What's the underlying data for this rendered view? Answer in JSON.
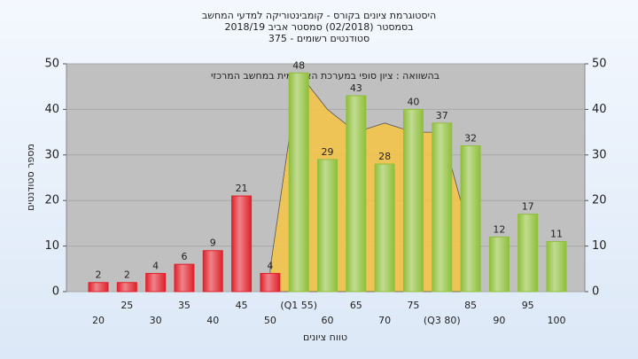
{
  "chart_data": {
    "type": "bar",
    "title": "היסטוגרמת ציונים בקורס - קומבינטוריקה למדעי המחשב",
    "subtitle": "בסמסטר  (02/2018)  סמסטר אביב 2018/19",
    "subtitle2": "סטודנטים רשומים - 375",
    "annotation": "בהשוואה : ציון סופי במערכת האקדמית במחשב המרכזי",
    "y_label": "מספר סטודנטים",
    "x_label": "טווח ציונים",
    "categories": [
      "20",
      "25",
      "30",
      "35",
      "40",
      "45",
      "50",
      "(Q1 55)",
      "60",
      "65",
      "70",
      "75",
      "(Q3 80)",
      "85",
      "90",
      "95",
      "100"
    ],
    "values": [
      2,
      2,
      4,
      6,
      9,
      21,
      4,
      48,
      29,
      43,
      28,
      40,
      37,
      32,
      12,
      17,
      11
    ],
    "bar_colors": [
      "#e0202a",
      "#e0202a",
      "#e0202a",
      "#e0202a",
      "#e0202a",
      "#e0202a",
      "#e0202a",
      "#8fbf3a",
      "#8fbf3a",
      "#8fbf3a",
      "#8fbf3a",
      "#8fbf3a",
      "#8fbf3a",
      "#8fbf3a",
      "#8fbf3a",
      "#8fbf3a",
      "#8fbf3a"
    ],
    "comparison": {
      "color": "#f7c444",
      "values": [
        null,
        null,
        null,
        null,
        null,
        null,
        5,
        48,
        40,
        35,
        37,
        35,
        35,
        12,
        null,
        null,
        null
      ]
    },
    "ylim": [
      0,
      50
    ],
    "yticks": [
      0,
      10,
      20,
      30,
      40,
      50
    ],
    "y2lim": [
      0,
      50
    ],
    "y2ticks": [
      0,
      10,
      20,
      30,
      40,
      50
    ],
    "grid": true
  }
}
